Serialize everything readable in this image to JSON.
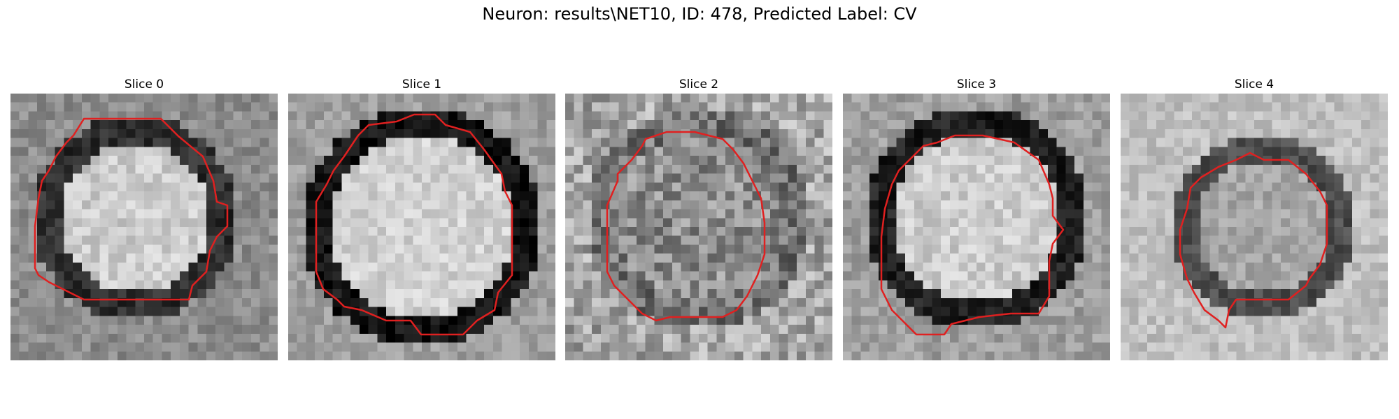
{
  "figure": {
    "title": "Neuron: results\\NET10, ID: 478, Predicted Label: CV"
  },
  "colors": {
    "contour": "#e02020",
    "colormap": "gray"
  },
  "panels": [
    {
      "title": "Slice 0"
    },
    {
      "title": "Slice 1"
    },
    {
      "title": "Slice 2"
    },
    {
      "title": "Slice 3"
    },
    {
      "title": "Slice 4"
    }
  ]
}
